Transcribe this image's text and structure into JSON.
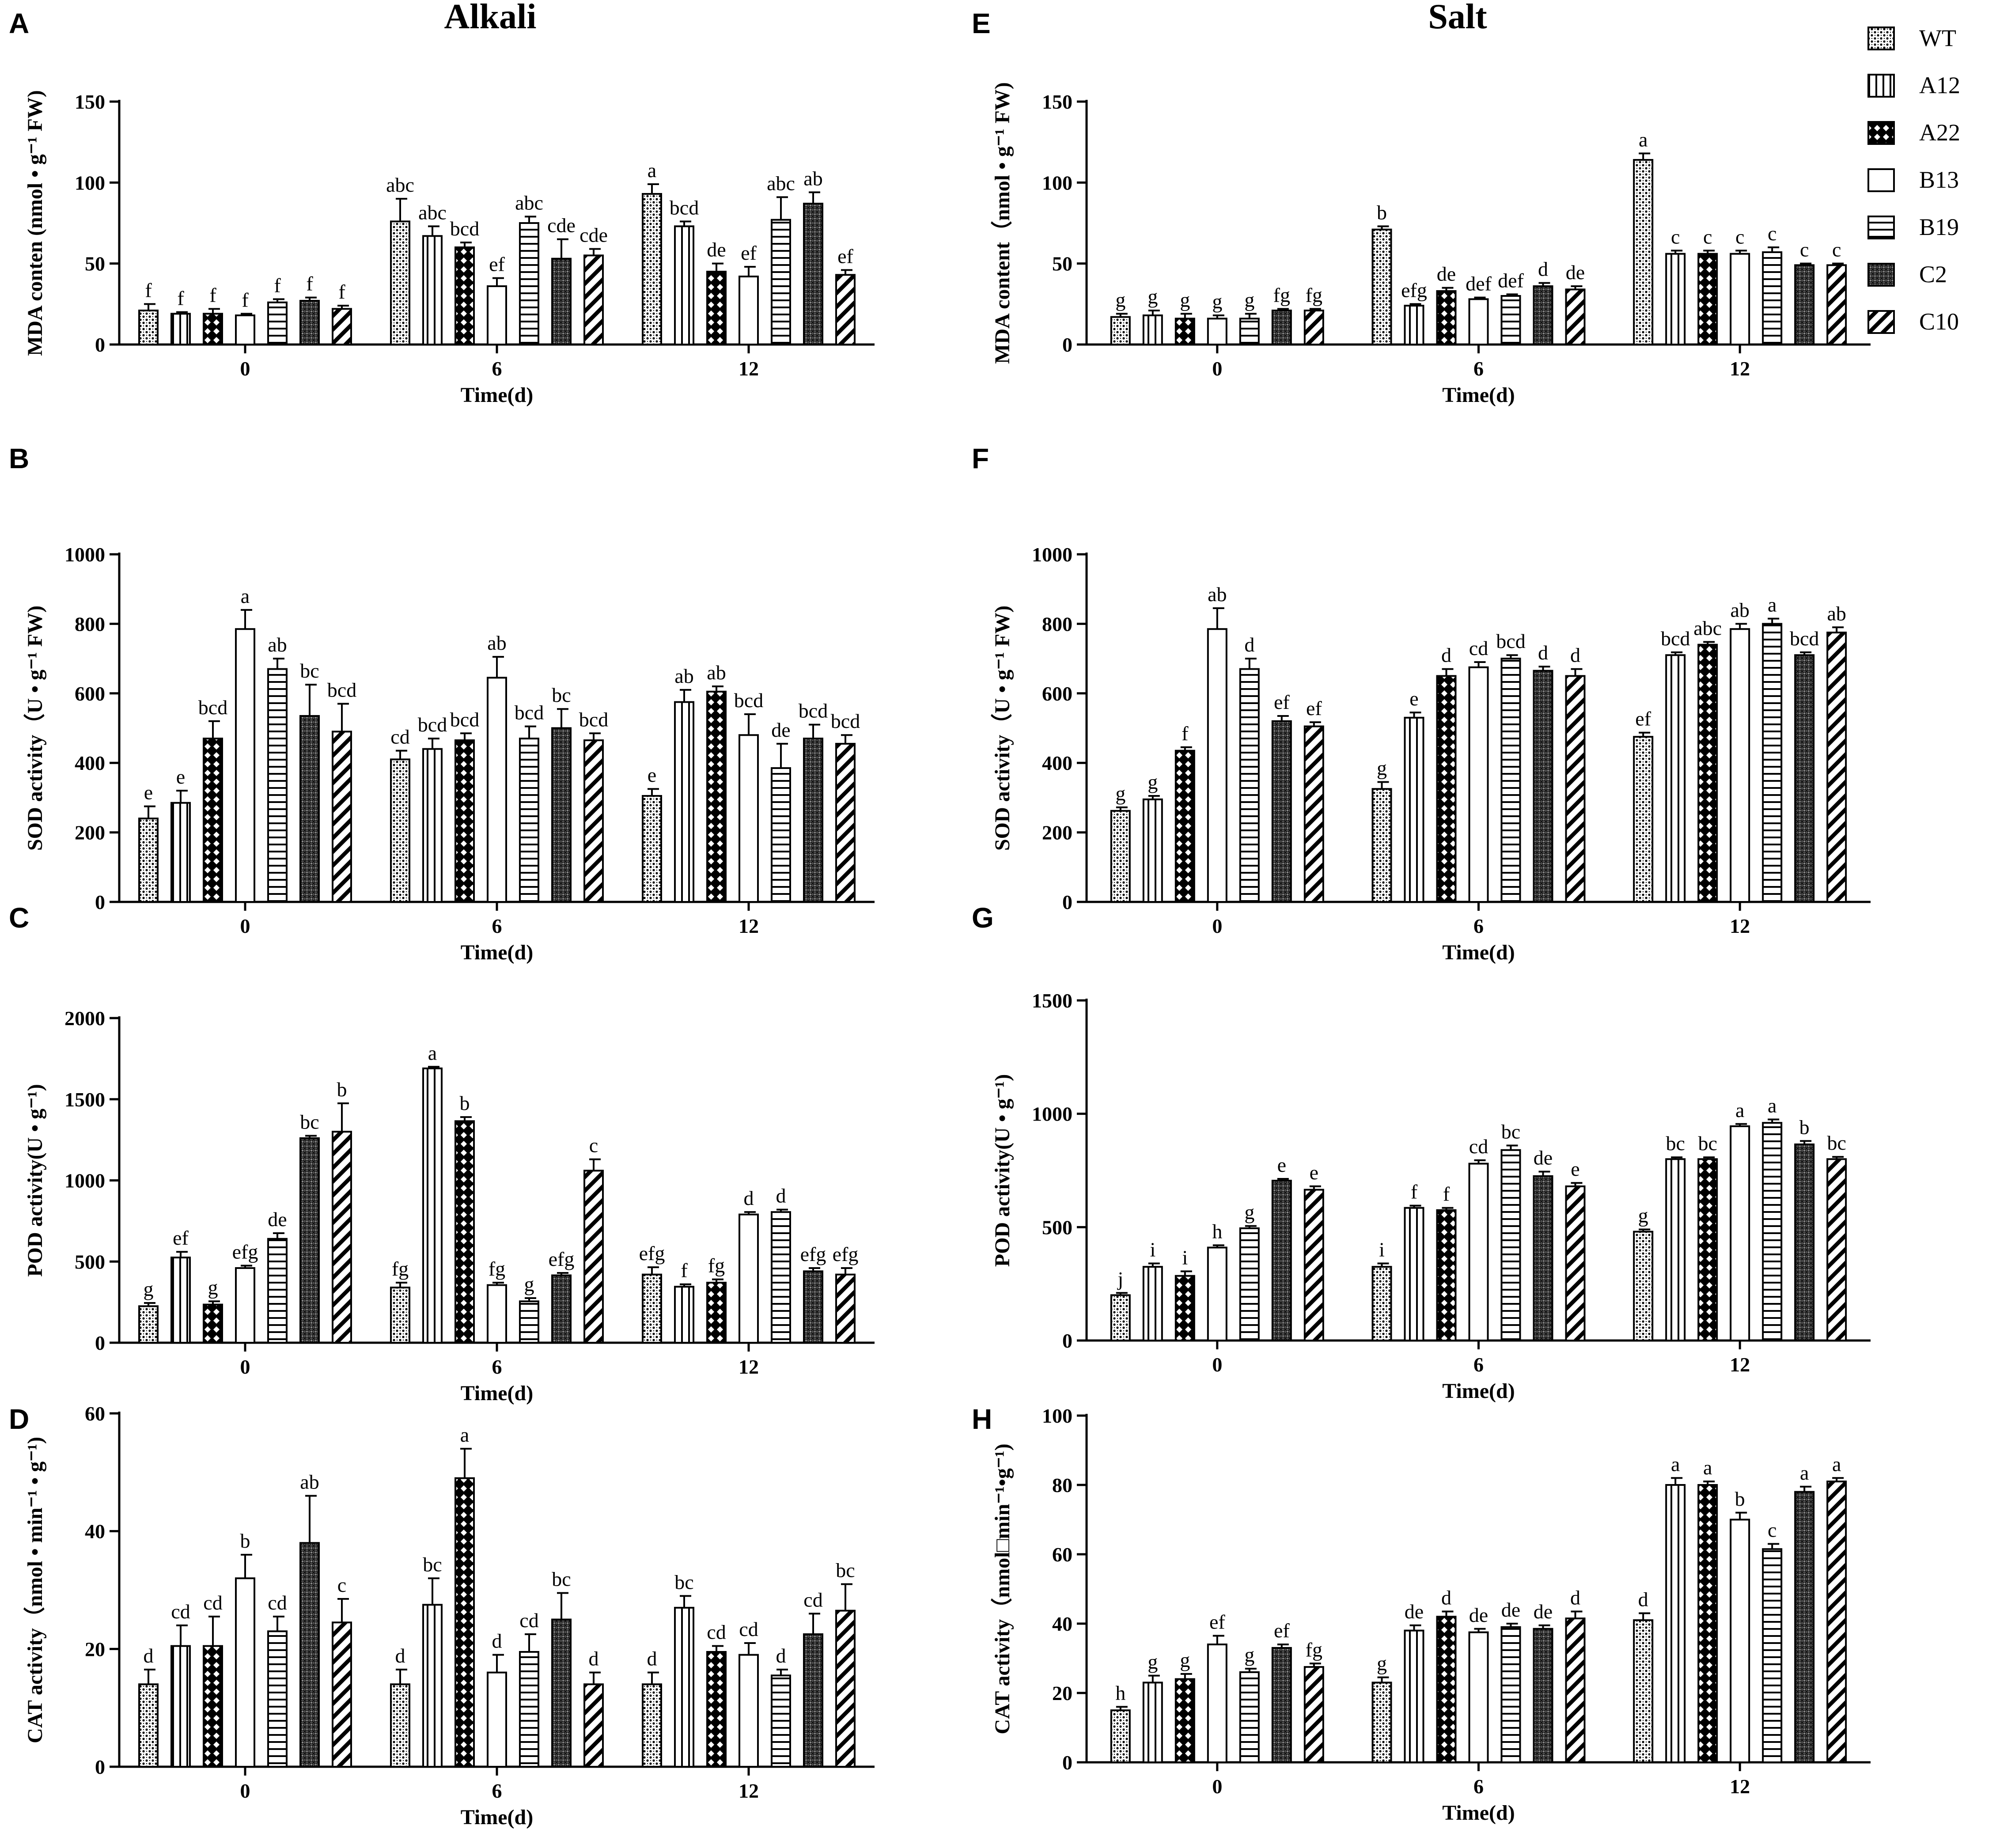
{
  "titles": {
    "left": "Alkali",
    "right": "Salt"
  },
  "legend": [
    "WT",
    "A12",
    "A22",
    "B13",
    "B19",
    "C2",
    "C10"
  ],
  "chart_data": [
    {
      "panel": "A",
      "type": "bar",
      "title": "Alkali",
      "xlabel": "Time(d)",
      "ylabel": "MDA conten (nmol • g⁻¹ FW)",
      "categories": [
        "0",
        "6",
        "12"
      ],
      "ylim": [
        0,
        150
      ],
      "yticks": [
        0,
        50,
        100,
        150
      ],
      "series": [
        {
          "name": "WT",
          "values": [
            21,
            76,
            93
          ],
          "errors": [
            4,
            14,
            6
          ],
          "letters": [
            "f",
            "abc",
            "a"
          ]
        },
        {
          "name": "A12",
          "values": [
            19,
            67,
            73
          ],
          "errors": [
            1,
            6,
            3
          ],
          "letters": [
            "f",
            "abc",
            "bcd"
          ]
        },
        {
          "name": "A22",
          "values": [
            19,
            60,
            45
          ],
          "errors": [
            3,
            3,
            5
          ],
          "letters": [
            "f",
            "bcd",
            "de"
          ]
        },
        {
          "name": "B13",
          "values": [
            18,
            36,
            42
          ],
          "errors": [
            1,
            5,
            6
          ],
          "letters": [
            "f",
            "ef",
            "ef"
          ]
        },
        {
          "name": "B19",
          "values": [
            26,
            75,
            77
          ],
          "errors": [
            2,
            4,
            14
          ],
          "letters": [
            "f",
            "abc",
            "abc"
          ]
        },
        {
          "name": "C2",
          "values": [
            27,
            53,
            87
          ],
          "errors": [
            2,
            12,
            7
          ],
          "letters": [
            "f",
            "cde",
            "ab"
          ]
        },
        {
          "name": "C10",
          "values": [
            22,
            55,
            43
          ],
          "errors": [
            2,
            4,
            3
          ],
          "letters": [
            "f",
            "cde",
            "ef"
          ]
        }
      ]
    },
    {
      "panel": "B",
      "type": "bar",
      "xlabel": "Time(d)",
      "ylabel": "SOD activity（U • g⁻¹ FW)",
      "categories": [
        "0",
        "6",
        "12"
      ],
      "ylim": [
        0,
        1000
      ],
      "yticks": [
        0,
        200,
        400,
        600,
        800,
        1000
      ],
      "series": [
        {
          "name": "WT",
          "values": [
            240,
            410,
            305
          ],
          "errors": [
            35,
            25,
            20
          ],
          "letters": [
            "e",
            "cd",
            "e"
          ]
        },
        {
          "name": "A12",
          "values": [
            285,
            440,
            575
          ],
          "errors": [
            35,
            30,
            35
          ],
          "letters": [
            "e",
            "bcd",
            "ab"
          ]
        },
        {
          "name": "A22",
          "values": [
            470,
            465,
            605
          ],
          "errors": [
            50,
            20,
            15
          ],
          "letters": [
            "bcd",
            "bcd",
            "ab"
          ]
        },
        {
          "name": "B13",
          "values": [
            785,
            645,
            480
          ],
          "errors": [
            55,
            60,
            60
          ],
          "letters": [
            "a",
            "ab",
            "bcd"
          ]
        },
        {
          "name": "B19",
          "values": [
            670,
            470,
            385
          ],
          "errors": [
            30,
            35,
            70
          ],
          "letters": [
            "ab",
            "bcd",
            "de"
          ]
        },
        {
          "name": "C2",
          "values": [
            535,
            500,
            470
          ],
          "errors": [
            90,
            55,
            40
          ],
          "letters": [
            "bc",
            "bc",
            "bcd"
          ]
        },
        {
          "name": "C10",
          "values": [
            490,
            465,
            455
          ],
          "errors": [
            80,
            20,
            25
          ],
          "letters": [
            "bcd",
            "bcd",
            "bcd"
          ]
        }
      ]
    },
    {
      "panel": "C",
      "type": "bar",
      "xlabel": "Time(d)",
      "ylabel": "POD activity(U • g⁻¹)",
      "categories": [
        "0",
        "6",
        "12"
      ],
      "ylim": [
        0,
        2000
      ],
      "yticks": [
        0,
        500,
        1000,
        1500,
        2000
      ],
      "series": [
        {
          "name": "WT",
          "values": [
            225,
            340,
            420
          ],
          "errors": [
            20,
            30,
            45
          ],
          "letters": [
            "g",
            "fg",
            "efg"
          ]
        },
        {
          "name": "A12",
          "values": [
            525,
            1690,
            345
          ],
          "errors": [
            35,
            10,
            15
          ],
          "letters": [
            "ef",
            "a",
            "f"
          ]
        },
        {
          "name": "A22",
          "values": [
            235,
            1365,
            370
          ],
          "errors": [
            20,
            25,
            20
          ],
          "letters": [
            "g",
            "b",
            "fg"
          ]
        },
        {
          "name": "B13",
          "values": [
            460,
            355,
            790
          ],
          "errors": [
            15,
            15,
            15
          ],
          "letters": [
            "efg",
            "fg",
            "d"
          ]
        },
        {
          "name": "B19",
          "values": [
            640,
            255,
            805
          ],
          "errors": [
            35,
            20,
            15
          ],
          "letters": [
            "de",
            "g",
            "d"
          ]
        },
        {
          "name": "C2",
          "values": [
            1260,
            415,
            440
          ],
          "errors": [
            15,
            15,
            20
          ],
          "letters": [
            "bc",
            "efg",
            "efg"
          ]
        },
        {
          "name": "C10",
          "values": [
            1300,
            1060,
            420
          ],
          "errors": [
            175,
            70,
            40
          ],
          "letters": [
            "b",
            "c",
            "efg"
          ]
        }
      ]
    },
    {
      "panel": "D",
      "type": "bar",
      "xlabel": "Time(d)",
      "ylabel": "CAT activity（nmol • min⁻¹ • g⁻¹)",
      "categories": [
        "0",
        "6",
        "12"
      ],
      "ylim": [
        0,
        60
      ],
      "yticks": [
        0,
        20,
        40,
        60
      ],
      "series": [
        {
          "name": "WT",
          "values": [
            14,
            14,
            14
          ],
          "errors": [
            2.5,
            2.5,
            2
          ],
          "letters": [
            "d",
            "d",
            "d"
          ]
        },
        {
          "name": "A12",
          "values": [
            20.5,
            27.5,
            27
          ],
          "errors": [
            3.5,
            4.5,
            2
          ],
          "letters": [
            "cd",
            "bc",
            "bc"
          ]
        },
        {
          "name": "A22",
          "values": [
            20.5,
            49,
            19.5
          ],
          "errors": [
            5,
            5,
            1
          ],
          "letters": [
            "cd",
            "a",
            "cd"
          ]
        },
        {
          "name": "B13",
          "values": [
            32,
            16,
            19
          ],
          "errors": [
            4,
            3,
            2
          ],
          "letters": [
            "b",
            "d",
            "cd"
          ]
        },
        {
          "name": "B19",
          "values": [
            23,
            19.5,
            15.5
          ],
          "errors": [
            2.5,
            3,
            1
          ],
          "letters": [
            "cd",
            "cd",
            "d"
          ]
        },
        {
          "name": "C2",
          "values": [
            38,
            25,
            22.5
          ],
          "errors": [
            8,
            4.5,
            3.5
          ],
          "letters": [
            "ab",
            "bc",
            "cd"
          ]
        },
        {
          "name": "C10",
          "values": [
            24.5,
            14,
            26.5
          ],
          "errors": [
            4,
            2,
            4.5
          ],
          "letters": [
            "c",
            "d",
            "bc"
          ]
        }
      ]
    },
    {
      "panel": "E",
      "type": "bar",
      "title": "Salt",
      "xlabel": "Time(d)",
      "ylabel": "MDA content（nmol • g⁻¹ FW)",
      "categories": [
        "0",
        "6",
        "12"
      ],
      "ylim": [
        0,
        150
      ],
      "yticks": [
        0,
        50,
        100,
        150
      ],
      "series": [
        {
          "name": "WT",
          "values": [
            17,
            71,
            114
          ],
          "errors": [
            2,
            2,
            4
          ],
          "letters": [
            "g",
            "b",
            "a"
          ]
        },
        {
          "name": "A12",
          "values": [
            18,
            24,
            56
          ],
          "errors": [
            3,
            1,
            2
          ],
          "letters": [
            "g",
            "efg",
            "c"
          ]
        },
        {
          "name": "A22",
          "values": [
            16,
            33,
            56
          ],
          "errors": [
            3,
            2,
            2
          ],
          "letters": [
            "g",
            "de",
            "c"
          ]
        },
        {
          "name": "B13",
          "values": [
            16,
            28,
            56
          ],
          "errors": [
            2,
            1,
            2
          ],
          "letters": [
            "g",
            "def",
            "c"
          ]
        },
        {
          "name": "B19",
          "values": [
            16,
            30,
            57
          ],
          "errors": [
            3,
            1,
            3
          ],
          "letters": [
            "g",
            "def",
            "c"
          ]
        },
        {
          "name": "C2",
          "values": [
            21,
            36,
            49
          ],
          "errors": [
            1,
            2,
            1
          ],
          "letters": [
            "fg",
            "d",
            "c"
          ]
        },
        {
          "name": "C10",
          "values": [
            21,
            34,
            49
          ],
          "errors": [
            1,
            2,
            1
          ],
          "letters": [
            "fg",
            "de",
            "c"
          ]
        }
      ]
    },
    {
      "panel": "F",
      "type": "bar",
      "xlabel": "Time(d)",
      "ylabel": "SOD activity（U • g⁻¹ FW)",
      "categories": [
        "0",
        "6",
        "12"
      ],
      "ylim": [
        0,
        1000
      ],
      "yticks": [
        0,
        200,
        400,
        600,
        800,
        1000
      ],
      "series": [
        {
          "name": "WT",
          "values": [
            262,
            325,
            475
          ],
          "errors": [
            10,
            20,
            12
          ],
          "letters": [
            "g",
            "g",
            "ef"
          ]
        },
        {
          "name": "A12",
          "values": [
            295,
            530,
            710
          ],
          "errors": [
            10,
            15,
            8
          ],
          "letters": [
            "g",
            "e",
            "bcd"
          ]
        },
        {
          "name": "A22",
          "values": [
            435,
            650,
            740
          ],
          "errors": [
            10,
            20,
            8
          ],
          "letters": [
            "f",
            "d",
            "abc"
          ]
        },
        {
          "name": "B13",
          "values": [
            785,
            675,
            785
          ],
          "errors": [
            60,
            15,
            15
          ],
          "letters": [
            "ab",
            "cd",
            "ab"
          ]
        },
        {
          "name": "B19",
          "values": [
            670,
            700,
            800
          ],
          "errors": [
            30,
            10,
            15
          ],
          "letters": [
            "d",
            "bcd",
            "a"
          ]
        },
        {
          "name": "C2",
          "values": [
            520,
            665,
            710
          ],
          "errors": [
            15,
            12,
            8
          ],
          "letters": [
            "ef",
            "d",
            "bcd"
          ]
        },
        {
          "name": "C10",
          "values": [
            505,
            650,
            775
          ],
          "errors": [
            12,
            20,
            15
          ],
          "letters": [
            "ef",
            "d",
            "ab"
          ]
        }
      ]
    },
    {
      "panel": "G",
      "type": "bar",
      "xlabel": "Time(d)",
      "ylabel": "POD activity(U • g⁻¹)",
      "categories": [
        "0",
        "6",
        "12"
      ],
      "ylim": [
        0,
        1500
      ],
      "yticks": [
        0,
        500,
        1000,
        1500
      ],
      "series": [
        {
          "name": "WT",
          "values": [
            200,
            325,
            480
          ],
          "errors": [
            10,
            15,
            10
          ],
          "letters": [
            "j",
            "i",
            "g"
          ]
        },
        {
          "name": "A12",
          "values": [
            325,
            585,
            800
          ],
          "errors": [
            15,
            10,
            8
          ],
          "letters": [
            "i",
            "f",
            "bc"
          ]
        },
        {
          "name": "A22",
          "values": [
            285,
            575,
            800
          ],
          "errors": [
            20,
            10,
            8
          ],
          "letters": [
            "i",
            "f",
            "bc"
          ]
        },
        {
          "name": "B13",
          "values": [
            410,
            780,
            945
          ],
          "errors": [
            10,
            15,
            10
          ],
          "letters": [
            "h",
            "cd",
            "a"
          ]
        },
        {
          "name": "B19",
          "values": [
            495,
            840,
            960
          ],
          "errors": [
            10,
            20,
            15
          ],
          "letters": [
            "g",
            "bc",
            "a"
          ]
        },
        {
          "name": "C2",
          "values": [
            705,
            725,
            865
          ],
          "errors": [
            8,
            20,
            15
          ],
          "letters": [
            "e",
            "de",
            "b"
          ]
        },
        {
          "name": "C10",
          "values": [
            665,
            680,
            800
          ],
          "errors": [
            15,
            15,
            10
          ],
          "letters": [
            "e",
            "e",
            "bc"
          ]
        }
      ]
    },
    {
      "panel": "H",
      "type": "bar",
      "xlabel": "Time(d)",
      "ylabel": "CAT activity（nmol□min⁻¹•g⁻¹)",
      "categories": [
        "0",
        "6",
        "12"
      ],
      "ylim": [
        0,
        100
      ],
      "yticks": [
        0,
        20,
        40,
        60,
        80,
        100
      ],
      "series": [
        {
          "name": "WT",
          "values": [
            15,
            23,
            41
          ],
          "errors": [
            1,
            1.5,
            2
          ],
          "letters": [
            "h",
            "g",
            "d"
          ]
        },
        {
          "name": "A12",
          "values": [
            23,
            38,
            80
          ],
          "errors": [
            2,
            1.5,
            2
          ],
          "letters": [
            "g",
            "de",
            "a"
          ]
        },
        {
          "name": "A22",
          "values": [
            24,
            42,
            80
          ],
          "errors": [
            1.5,
            1.5,
            1
          ],
          "letters": [
            "g",
            "d",
            "a"
          ]
        },
        {
          "name": "B13",
          "values": [
            34,
            37.5,
            70
          ],
          "errors": [
            2.5,
            1,
            2
          ],
          "letters": [
            "ef",
            "de",
            "b"
          ]
        },
        {
          "name": "B19",
          "values": [
            26,
            39,
            61.5
          ],
          "errors": [
            1,
            1,
            1.5
          ],
          "letters": [
            "g",
            "de",
            "c"
          ]
        },
        {
          "name": "C2",
          "values": [
            33,
            38.5,
            78
          ],
          "errors": [
            1,
            1,
            1.5
          ],
          "letters": [
            "ef",
            "de",
            "a"
          ]
        },
        {
          "name": "C10",
          "values": [
            27.5,
            41.5,
            81
          ],
          "errors": [
            1,
            2,
            1
          ],
          "letters": [
            "fg",
            "d",
            "a"
          ]
        }
      ]
    }
  ]
}
